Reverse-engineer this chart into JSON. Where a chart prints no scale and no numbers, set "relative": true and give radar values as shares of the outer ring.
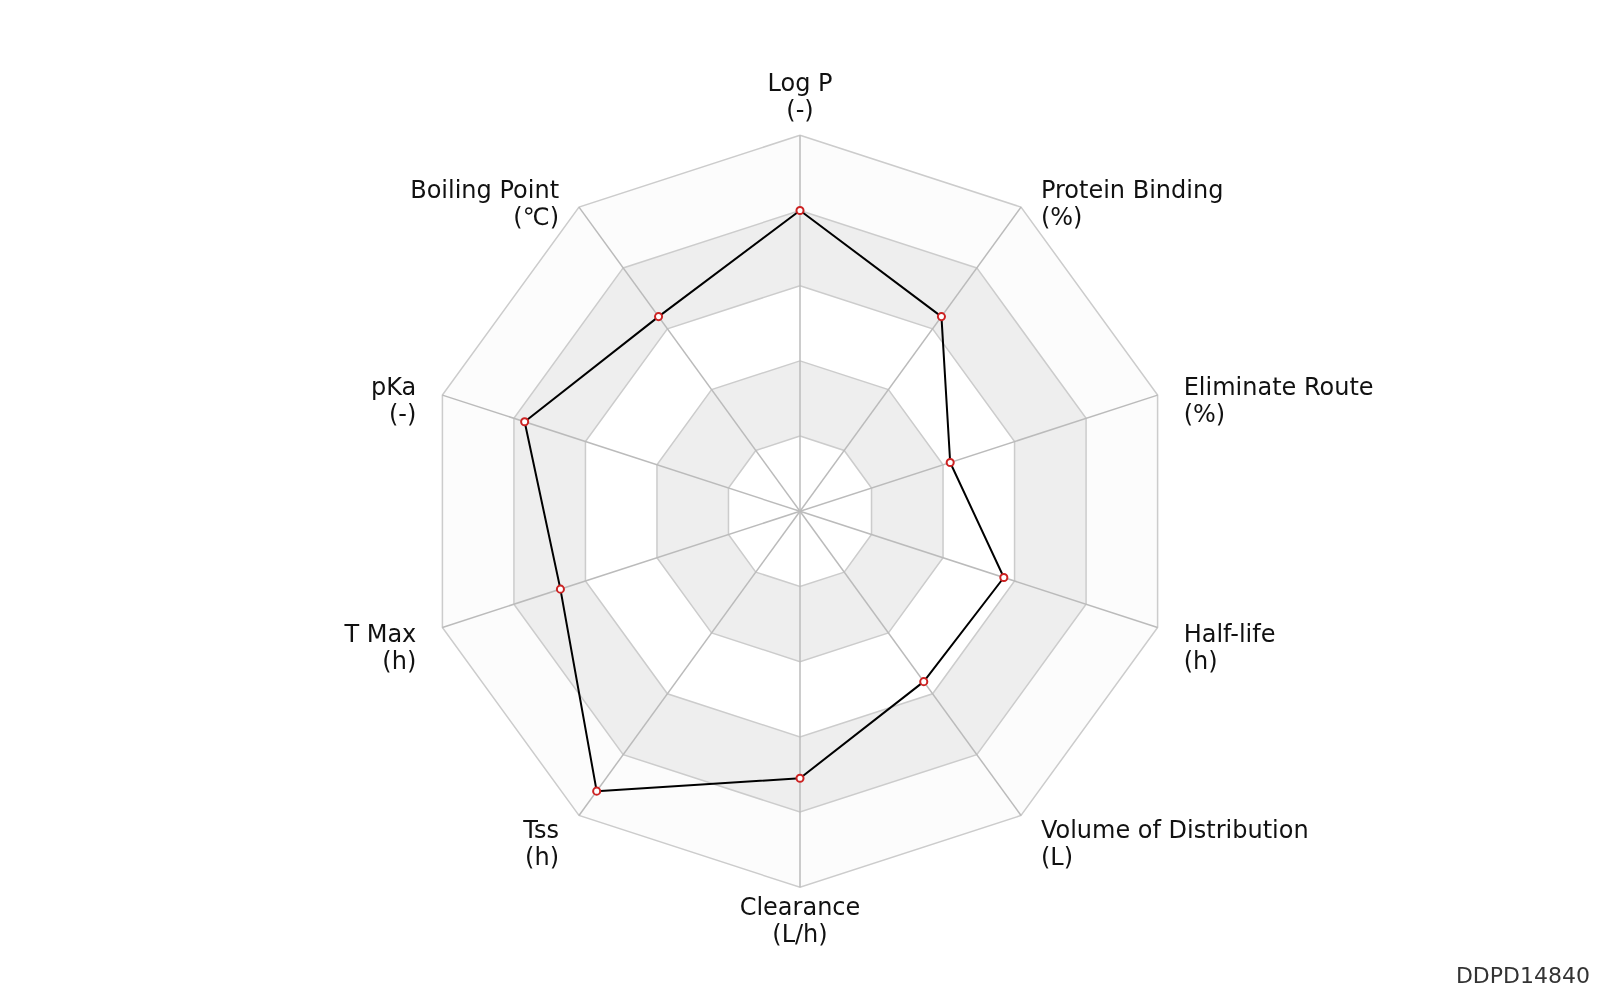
{
  "chart_data": {
    "type": "radar",
    "relative": true,
    "grid": true,
    "marker": "circle",
    "categories": [
      "Log P\n(-)",
      "Protein Binding\n(%)",
      "Eliminate Route\n(%)",
      "Half-life\n(h)",
      "Volume of Distribution\n(L)",
      "Clearance\n(L/h)",
      "Tss\n(h)",
      "T Max\n(h)",
      "pKa\n(-)",
      "Boiling Point\n(℃)"
    ],
    "series": [
      {
        "color": "#000000",
        "values": [
          0.8,
          0.64,
          0.42,
          0.57,
          0.56,
          0.71,
          0.92,
          0.67,
          0.77,
          0.64
        ]
      }
    ],
    "annotations": [
      "DDPD14840"
    ]
  }
}
